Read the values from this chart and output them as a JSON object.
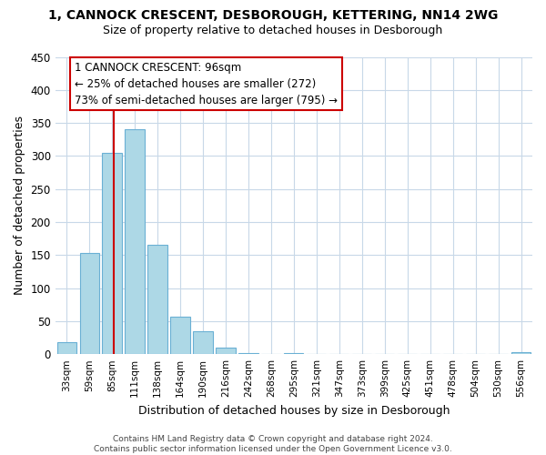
{
  "title": "1, CANNOCK CRESCENT, DESBOROUGH, KETTERING, NN14 2WG",
  "subtitle": "Size of property relative to detached houses in Desborough",
  "xlabel": "Distribution of detached houses by size in Desborough",
  "ylabel": "Number of detached properties",
  "bar_labels": [
    "33sqm",
    "59sqm",
    "85sqm",
    "111sqm",
    "138sqm",
    "164sqm",
    "190sqm",
    "216sqm",
    "242sqm",
    "268sqm",
    "295sqm",
    "321sqm",
    "347sqm",
    "373sqm",
    "399sqm",
    "425sqm",
    "451sqm",
    "478sqm",
    "504sqm",
    "530sqm",
    "556sqm"
  ],
  "bar_values": [
    18,
    153,
    305,
    340,
    165,
    57,
    35,
    10,
    2,
    0,
    1,
    0,
    0,
    0,
    0,
    0,
    0,
    0,
    0,
    0,
    3
  ],
  "bar_color": "#add8e6",
  "bar_edge_color": "#6ab0d4",
  "ylim": [
    0,
    450
  ],
  "yticks": [
    0,
    50,
    100,
    150,
    200,
    250,
    300,
    350,
    400,
    450
  ],
  "property_line_color": "#cc0000",
  "annotation_title": "1 CANNOCK CRESCENT: 96sqm",
  "annotation_line1": "← 25% of detached houses are smaller (272)",
  "annotation_line2": "73% of semi-detached houses are larger (795) →",
  "footer_line1": "Contains HM Land Registry data © Crown copyright and database right 2024.",
  "footer_line2": "Contains public sector information licensed under the Open Government Licence v3.0.",
  "background_color": "#ffffff",
  "grid_color": "#c8d8e8"
}
